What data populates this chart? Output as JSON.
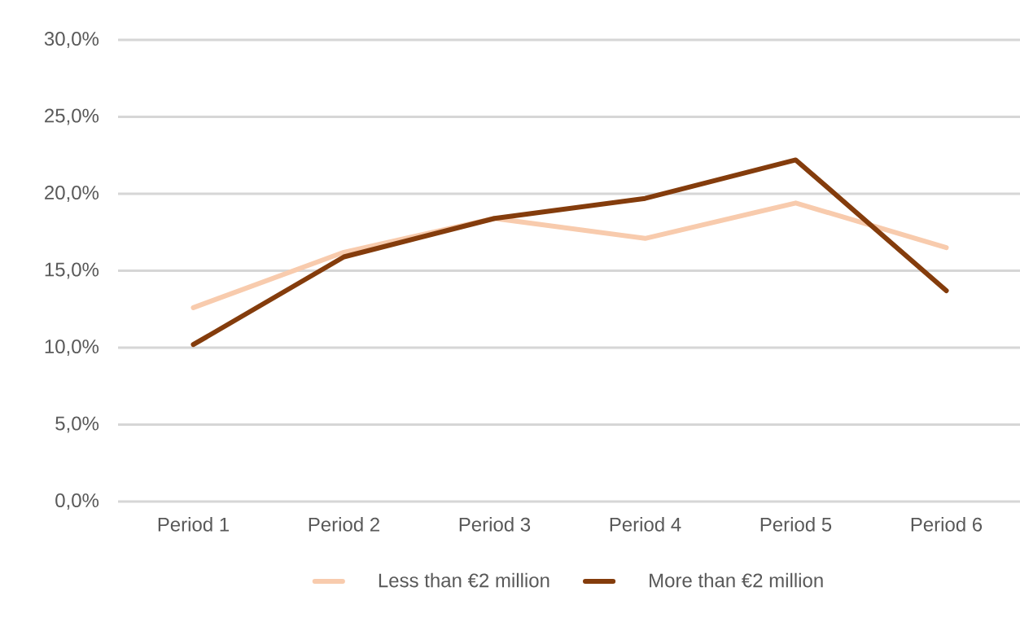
{
  "chart_data": {
    "type": "line",
    "categories": [
      "Period 1",
      "Period 2",
      "Period 3",
      "Period 4",
      "Period 5",
      "Period 6"
    ],
    "series": [
      {
        "name": "Less than €2 million",
        "color": "#f8cbad",
        "values": [
          12.6,
          16.2,
          18.4,
          17.1,
          19.4,
          16.5
        ]
      },
      {
        "name": "More than €2 million",
        "color": "#843c0c",
        "values": [
          10.2,
          15.9,
          18.4,
          19.7,
          22.2,
          13.7
        ]
      }
    ],
    "ylim": [
      0,
      30
    ],
    "yticks": [
      {
        "value": 0,
        "label": "0,0%"
      },
      {
        "value": 5,
        "label": "5,0%"
      },
      {
        "value": 10,
        "label": "10,0%"
      },
      {
        "value": 15,
        "label": "15,0%"
      },
      {
        "value": 20,
        "label": "20,0%"
      },
      {
        "value": 25,
        "label": "25,0%"
      },
      {
        "value": 30,
        "label": "30,0%"
      }
    ],
    "grid": "y",
    "legend": "bottom",
    "marker": "none",
    "line_style": "solid"
  }
}
